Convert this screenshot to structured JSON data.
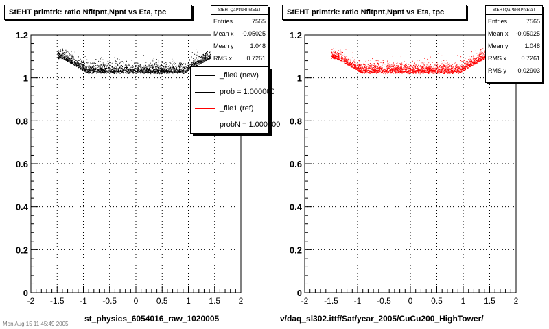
{
  "footer_text": "Mon Aug 15 11:45:49 2005",
  "chart_data": [
    {
      "type": "scatter",
      "title": "StEHT primtrk: ratio Nfitpnt,Npnt vs Eta, tpc",
      "xlabel": "st_physics_6054016_raw_1020005",
      "ylabel": "",
      "xlim": [
        -2,
        2
      ],
      "ylim": [
        0,
        1.2
      ],
      "xticks": [
        "-2",
        "-1.5",
        "-1",
        "-0.5",
        "0",
        "0.5",
        "1",
        "1.5",
        "2"
      ],
      "yticks": [
        "0",
        "0.2",
        "0.4",
        "0.6",
        "0.8",
        "1",
        "1.2"
      ],
      "grid": true,
      "point_color": "#000000",
      "stats": {
        "header": "StEHTQaPtrkRPntEtaT",
        "rows": [
          {
            "label": "Entries",
            "value": "7565"
          },
          {
            "label": "Mean x",
            "value": "-0.05025"
          },
          {
            "label": "Mean y",
            "value": "1.048"
          },
          {
            "label": "RMS x",
            "value": "0.7261"
          }
        ]
      },
      "legend": {
        "placement": "top-right",
        "entries": [
          {
            "label": "_file0 (new)",
            "color": "#000000"
          },
          {
            "label": "prob = 1.000000",
            "color": "#000000"
          },
          {
            "label": "_file1 (ref)",
            "color": "#ff0000"
          },
          {
            "label": "probN = 1.000000",
            "color": "#ff0000"
          }
        ]
      },
      "series": [
        {
          "x_range": [
            -1.5,
            1.5
          ],
          "y_center_min": 1.02,
          "y_center_edge": 1.09,
          "y_spread": 0.025,
          "entries": 7565
        }
      ]
    },
    {
      "type": "scatter",
      "title": "StEHT primtrk: ratio Nfitpnt,Npnt vs Eta, tpc",
      "xlabel": "v/daq_sl302.ittf/Sat/year_2005/CuCu200_HighTower/",
      "ylabel": "",
      "xlim": [
        -2,
        2
      ],
      "ylim": [
        0,
        1.2
      ],
      "xticks": [
        "-2",
        "-1.5",
        "-1",
        "-0.5",
        "0",
        "0.5",
        "1",
        "1.5",
        "2"
      ],
      "yticks": [
        "0",
        "0.2",
        "0.4",
        "0.6",
        "0.8",
        "1",
        "1.2"
      ],
      "grid": true,
      "point_color": "#ff0000",
      "stats": {
        "header": "StEHTQaPtrkRPntEtaT",
        "rows": [
          {
            "label": "Entries",
            "value": "7565"
          },
          {
            "label": "Mean x",
            "value": "-0.05025"
          },
          {
            "label": "Mean y",
            "value": "1.048"
          },
          {
            "label": "RMS x",
            "value": "0.7261"
          },
          {
            "label": "RMS y",
            "value": "0.02903"
          }
        ]
      },
      "series": [
        {
          "x_range": [
            -1.5,
            1.5
          ],
          "y_center_min": 1.02,
          "y_center_edge": 1.09,
          "y_spread": 0.025,
          "entries": 7565
        }
      ]
    }
  ]
}
